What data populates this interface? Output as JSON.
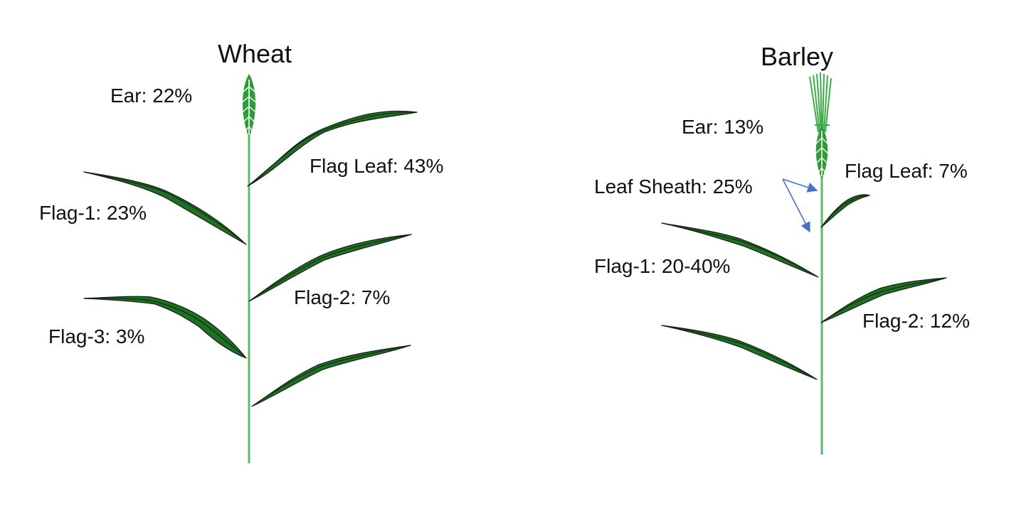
{
  "colors": {
    "leaf": "#1f6f24",
    "stem": "#5fb86a",
    "ear": "#2e9b38",
    "arrow": "#4472c4"
  },
  "wheat": {
    "title": "Wheat",
    "ear": "Ear: 22%",
    "flag_leaf": "Flag Leaf: 43%",
    "flag_1": "Flag-1: 23%",
    "flag_2": "Flag-2: 7%",
    "flag_3": "Flag-3: 3%"
  },
  "barley": {
    "title": "Barley",
    "ear": "Ear: 13%",
    "flag_leaf": "Flag Leaf: 7%",
    "leaf_sheath": "Leaf Sheath: 25%",
    "flag_1": "Flag-1: 20-40%",
    "flag_2": "Flag-2: 12%"
  }
}
